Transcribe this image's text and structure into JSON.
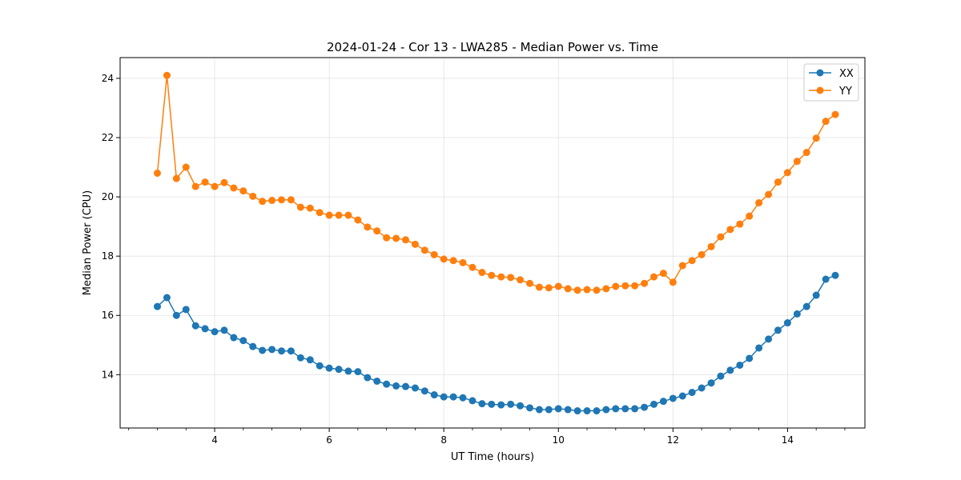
{
  "chart_data": {
    "type": "line",
    "title": "2024-01-24 - Cor 13 - LWA285 - Median Power vs. Time",
    "xlabel": "UT Time (hours)",
    "ylabel": "Median Power (CPU)",
    "xlim": [
      2.35,
      15.35
    ],
    "ylim": [
      12.2,
      24.7
    ],
    "x_ticks": [
      4,
      6,
      8,
      10,
      12,
      14
    ],
    "x_tick_labels": [
      "4",
      "6",
      "8",
      "10",
      "12",
      "14"
    ],
    "x_minor_step": 0.5,
    "y_ticks": [
      14,
      16,
      18,
      20,
      22,
      24
    ],
    "y_tick_labels": [
      "14",
      "16",
      "18",
      "20",
      "22",
      "24"
    ],
    "grid": true,
    "legend_position": "top-right",
    "x": [
      3.0,
      3.167,
      3.333,
      3.5,
      3.667,
      3.833,
      4.0,
      4.167,
      4.333,
      4.5,
      4.667,
      4.833,
      5.0,
      5.167,
      5.333,
      5.5,
      5.667,
      5.833,
      6.0,
      6.167,
      6.333,
      6.5,
      6.667,
      6.833,
      7.0,
      7.167,
      7.333,
      7.5,
      7.667,
      7.833,
      8.0,
      8.167,
      8.333,
      8.5,
      8.667,
      8.833,
      9.0,
      9.167,
      9.333,
      9.5,
      9.667,
      9.833,
      10.0,
      10.167,
      10.333,
      10.5,
      10.667,
      10.833,
      11.0,
      11.167,
      11.333,
      11.5,
      11.667,
      11.833,
      12.0,
      12.167,
      12.333,
      12.5,
      12.667,
      12.833,
      13.0,
      13.167,
      13.333,
      13.5,
      13.667,
      13.833,
      14.0,
      14.167,
      14.333,
      14.5,
      14.667,
      14.833
    ],
    "series": [
      {
        "name": "XX",
        "color": "#1f77b4",
        "values": [
          16.3,
          16.6,
          16.0,
          16.2,
          15.65,
          15.55,
          15.45,
          15.5,
          15.25,
          15.15,
          14.95,
          14.82,
          14.85,
          14.8,
          14.8,
          14.57,
          14.5,
          14.3,
          14.22,
          14.18,
          14.12,
          14.1,
          13.9,
          13.78,
          13.68,
          13.62,
          13.6,
          13.55,
          13.45,
          13.32,
          13.25,
          13.25,
          13.22,
          13.12,
          13.02,
          13.0,
          12.98,
          13.0,
          12.95,
          12.88,
          12.82,
          12.82,
          12.85,
          12.82,
          12.78,
          12.78,
          12.78,
          12.82,
          12.85,
          12.85,
          12.85,
          12.9,
          13.0,
          13.1,
          13.2,
          13.28,
          13.4,
          13.55,
          13.72,
          13.95,
          14.15,
          14.32,
          14.55,
          14.9,
          15.2,
          15.5,
          15.75,
          16.05,
          16.3,
          16.68,
          17.22,
          17.35
        ]
      },
      {
        "name": "YY",
        "color": "#ff7f0e",
        "values": [
          20.8,
          24.1,
          20.62,
          21.0,
          20.35,
          20.5,
          20.35,
          20.48,
          20.3,
          20.2,
          20.02,
          19.85,
          19.88,
          19.9,
          19.9,
          19.65,
          19.62,
          19.47,
          19.38,
          19.38,
          19.38,
          19.22,
          18.98,
          18.85,
          18.62,
          18.6,
          18.55,
          18.4,
          18.2,
          18.05,
          17.9,
          17.85,
          17.78,
          17.62,
          17.45,
          17.35,
          17.3,
          17.28,
          17.2,
          17.08,
          16.95,
          16.93,
          16.98,
          16.9,
          16.85,
          16.87,
          16.85,
          16.9,
          16.98,
          17.0,
          17.0,
          17.08,
          17.3,
          17.42,
          17.12,
          17.68,
          17.85,
          18.05,
          18.32,
          18.65,
          18.9,
          19.08,
          19.35,
          19.8,
          20.08,
          20.5,
          20.82,
          21.2,
          21.5,
          21.98,
          22.55,
          22.78
        ]
      }
    ]
  }
}
